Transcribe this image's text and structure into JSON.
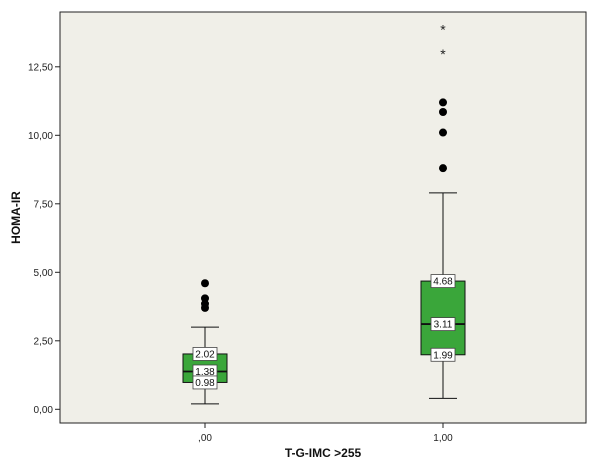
{
  "chart_data": {
    "type": "boxplot",
    "title": "",
    "xlabel": "T-G-IMC >255",
    "ylabel": "HOMA-IR",
    "ylim": [
      -0.5,
      14.5
    ],
    "yticks": [
      0.0,
      2.5,
      5.0,
      7.5,
      10.0,
      12.5
    ],
    "ytick_labels": [
      "0,00",
      "2,50",
      "5,00",
      "7,50",
      "10,00",
      "12,50"
    ],
    "categories": [
      ",00",
      "1,00"
    ],
    "box_color": "#3aa63a",
    "plot_background": "#f0efe8",
    "grid": false,
    "groups": [
      {
        "category": ",00",
        "whisker_low": 0.2,
        "q1": 0.98,
        "median": 1.38,
        "q3": 2.02,
        "whisker_high": 3.0,
        "labels": {
          "q1": "0.98",
          "median": "1.38",
          "q3": "2.02"
        },
        "outliers": [
          3.7,
          3.85,
          4.05,
          4.6
        ],
        "extremes": []
      },
      {
        "category": "1,00",
        "whisker_low": 0.4,
        "q1": 1.99,
        "median": 3.11,
        "q3": 4.68,
        "whisker_high": 7.9,
        "labels": {
          "q1": "1.99",
          "median": "3.11",
          "q3": "4.68"
        },
        "outliers": [
          8.8,
          10.1,
          10.85,
          11.2
        ],
        "extremes": [
          13.0,
          13.9
        ]
      }
    ]
  }
}
